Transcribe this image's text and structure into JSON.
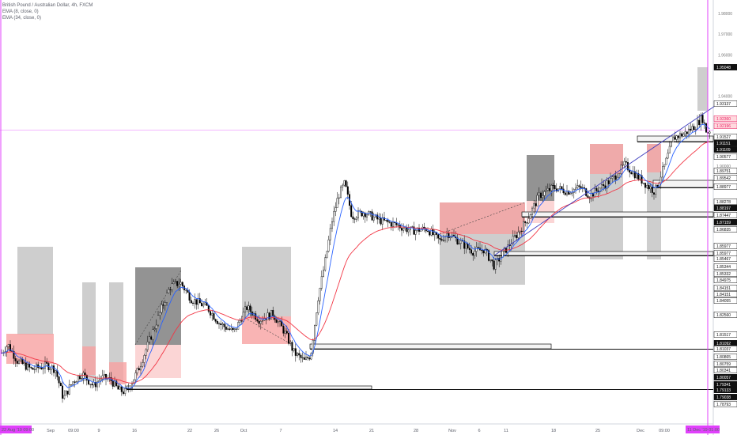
{
  "legend": {
    "symbol": "British Pound / Australian Dollar, 4h, FXCM",
    "ema1": "EMA (8, close, 0)",
    "ema2": "EMA (34, close, 0)"
  },
  "colors": {
    "ema_fast": "#2962ff",
    "ema_slow": "#f23645",
    "candle": "#000000",
    "red_zone": "#f7a1a1",
    "gray_zone": "#b9b9b9",
    "dark_zone": "#6f6f6f",
    "marker": "#e040fb",
    "trendline": "#3f3fbf"
  },
  "price_axis": {
    "gray_ticks": [
      "1.98000",
      "1.97000",
      "1.96000",
      "1.94000",
      "1.82000"
    ],
    "labels": [
      {
        "text": "1.95048",
        "style": "black"
      },
      {
        "text": "1.93137",
        "style": "white"
      },
      {
        "text": "1.92360",
        "style": "pink"
      },
      {
        "text": "1.92196",
        "style": "pink"
      },
      {
        "text": "1.91527",
        "style": "white"
      },
      {
        "text": "1.91151",
        "style": "black"
      },
      {
        "text": "1.91109",
        "style": "black"
      },
      {
        "text": "1.90577",
        "style": "white"
      },
      {
        "text": "1.90000",
        "style": "gray"
      },
      {
        "text": "1.89751",
        "style": "white"
      },
      {
        "text": "1.89542",
        "style": "white"
      },
      {
        "text": "1.88977",
        "style": "white"
      },
      {
        "text": "1.88278",
        "style": "white"
      },
      {
        "text": "1.88197",
        "style": "black"
      },
      {
        "text": "1.87447",
        "style": "white"
      },
      {
        "text": "1.87159",
        "style": "black"
      },
      {
        "text": "1.86835",
        "style": "white"
      },
      {
        "text": "1.85977",
        "style": "white"
      },
      {
        "text": "1.85977",
        "style": "white"
      },
      {
        "text": "1.85467",
        "style": "white"
      },
      {
        "text": "1.85344",
        "style": "white"
      },
      {
        "text": "1.85332",
        "style": "white"
      },
      {
        "text": "1.84975",
        "style": "white"
      },
      {
        "text": "1.84151",
        "style": "white"
      },
      {
        "text": "1.84151",
        "style": "white"
      },
      {
        "text": "1.84055",
        "style": "white"
      },
      {
        "text": "1.82560",
        "style": "white"
      },
      {
        "text": "1.81517",
        "style": "white"
      },
      {
        "text": "1.81092",
        "style": "black"
      },
      {
        "text": "1.81037",
        "style": "white"
      },
      {
        "text": "1.80865",
        "style": "white"
      },
      {
        "text": "1.80759",
        "style": "white"
      },
      {
        "text": "1.80341",
        "style": "white"
      },
      {
        "text": "1.80057",
        "style": "black"
      },
      {
        "text": "1.79341",
        "style": "black"
      },
      {
        "text": "1.79133",
        "style": "black"
      },
      {
        "text": "1.79038",
        "style": "black"
      },
      {
        "text": "1.78793",
        "style": "white"
      }
    ]
  },
  "time_axis": {
    "start_label": "22 Aug '19   09:00",
    "end_label": "11 Dec '19   01:00",
    "labels": [
      "Sep",
      "09:00",
      "9",
      "16",
      "22",
      "26",
      "Oct",
      "7",
      "14",
      "21",
      "28",
      "Nov",
      "6",
      "11",
      "18",
      "25",
      "Dec",
      "09:00"
    ]
  },
  "chart_data": {
    "type": "candlestick",
    "title": "British Pound / Australian Dollar, 4h, FXCM",
    "symbol": "GBPAUD",
    "exchange": "FXCM",
    "interval": "4h",
    "indicators": [
      "EMA (8, close, 0)",
      "EMA (34, close, 0)"
    ],
    "x_range": [
      "22 Aug '19 09:00",
      "11 Dec '19 01:00"
    ],
    "ylim": [
      1.7855,
      1.9865
    ],
    "current_price": 1.9236,
    "annotation_types": [
      "supply/demand rectangles",
      "horizontal level boxes",
      "trendline"
    ]
  }
}
